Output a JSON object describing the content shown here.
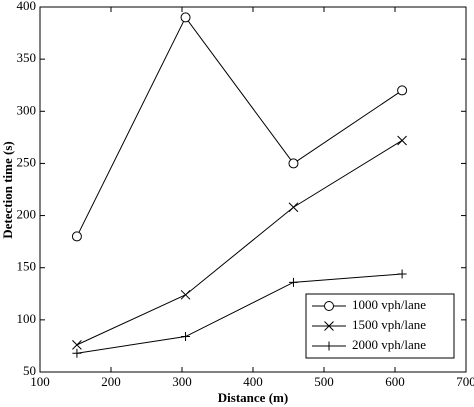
{
  "chart_data": {
    "type": "line",
    "x_label": "Distance (m)",
    "y_label": "Detection time (s)",
    "xlim": [
      100,
      700
    ],
    "xticks": [
      100,
      200,
      300,
      400,
      500,
      600,
      700
    ],
    "ylim": [
      50,
      400
    ],
    "yticks": [
      50,
      100,
      150,
      200,
      250,
      300,
      350,
      400
    ],
    "grid": false,
    "legend_position": "lower right",
    "series": [
      {
        "name": "1000 vph/lane",
        "color": "#000000",
        "marker": "o",
        "x": [
          152,
          305,
          457,
          610
        ],
        "values": [
          180,
          390,
          250,
          320
        ]
      },
      {
        "name": "1500 vph/lane",
        "color": "#000000",
        "marker": "x",
        "x": [
          152,
          305,
          457,
          610
        ],
        "values": [
          76,
          124,
          208,
          272
        ]
      },
      {
        "name": "2000 vph/lane",
        "color": "#000000",
        "marker": "+",
        "x": [
          152,
          305,
          457,
          610
        ],
        "values": [
          68,
          84,
          136,
          144
        ]
      }
    ]
  }
}
